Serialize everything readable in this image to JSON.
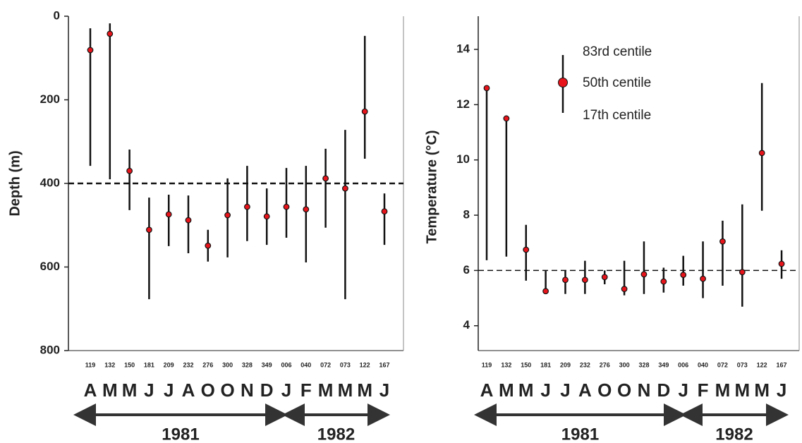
{
  "chart_data": [
    {
      "type": "errorbar",
      "ylabel": "Depth (m)",
      "inverted": true,
      "categories": [
        "119",
        "132",
        "150",
        "181",
        "209",
        "232",
        "276",
        "300",
        "328",
        "349",
        "006",
        "040",
        "072",
        "073",
        "122",
        "167"
      ],
      "months": [
        "A",
        "M",
        "M",
        "J",
        "J",
        "A",
        "O",
        "O",
        "N",
        "D",
        "J",
        "F",
        "M",
        "M",
        "M",
        "J"
      ],
      "years": [
        "1981",
        "1982"
      ],
      "ylim": [
        0,
        800
      ],
      "yticks": [
        0,
        200,
        400,
        600,
        800
      ],
      "hline": 400,
      "series": [
        {
          "color": "#e8141b",
          "values": [
            81,
            42,
            370,
            511,
            474,
            488,
            549,
            476,
            456,
            479,
            456,
            462,
            388,
            412,
            228,
            467
          ],
          "low": [
            29,
            17,
            319,
            434,
            427,
            429,
            511,
            388,
            358,
            412,
            363,
            358,
            317,
            272,
            47,
            424
          ],
          "high": [
            358,
            390,
            464,
            677,
            550,
            567,
            587,
            577,
            538,
            547,
            530,
            589,
            506,
            677,
            341,
            547
          ]
        }
      ]
    },
    {
      "type": "errorbar",
      "ylabel": "Temperature (°C)",
      "categories": [
        "119",
        "132",
        "150",
        "181",
        "209",
        "232",
        "276",
        "300",
        "328",
        "349",
        "006",
        "040",
        "072",
        "073",
        "122",
        "167"
      ],
      "months": [
        "A",
        "M",
        "M",
        "J",
        "J",
        "A",
        "O",
        "O",
        "N",
        "D",
        "J",
        "F",
        "M",
        "M",
        "M",
        "J"
      ],
      "years": [
        "1981",
        "1982"
      ],
      "ylim": [
        3.1,
        15.2
      ],
      "yticks": [
        4,
        6,
        8,
        10,
        12,
        14
      ],
      "hline": 6,
      "legend": [
        "83rd centile",
        "50th centile",
        "17th centile"
      ],
      "series": [
        {
          "color": "#e8141b",
          "values": [
            12.6,
            11.5,
            6.75,
            5.25,
            5.66,
            5.66,
            5.76,
            5.33,
            5.86,
            5.6,
            5.84,
            5.7,
            7.05,
            5.94,
            10.25,
            6.24
          ],
          "low": [
            6.37,
            6.5,
            5.63,
            5.25,
            5.15,
            5.15,
            5.5,
            5.1,
            5.15,
            5.2,
            5.45,
            5.0,
            5.45,
            4.69,
            8.16,
            5.7
          ],
          "high": [
            12.6,
            11.5,
            7.65,
            6.0,
            6.0,
            6.35,
            6.0,
            6.35,
            7.05,
            6.1,
            6.53,
            7.05,
            7.8,
            8.39,
            12.78,
            6.73
          ]
        }
      ]
    }
  ]
}
